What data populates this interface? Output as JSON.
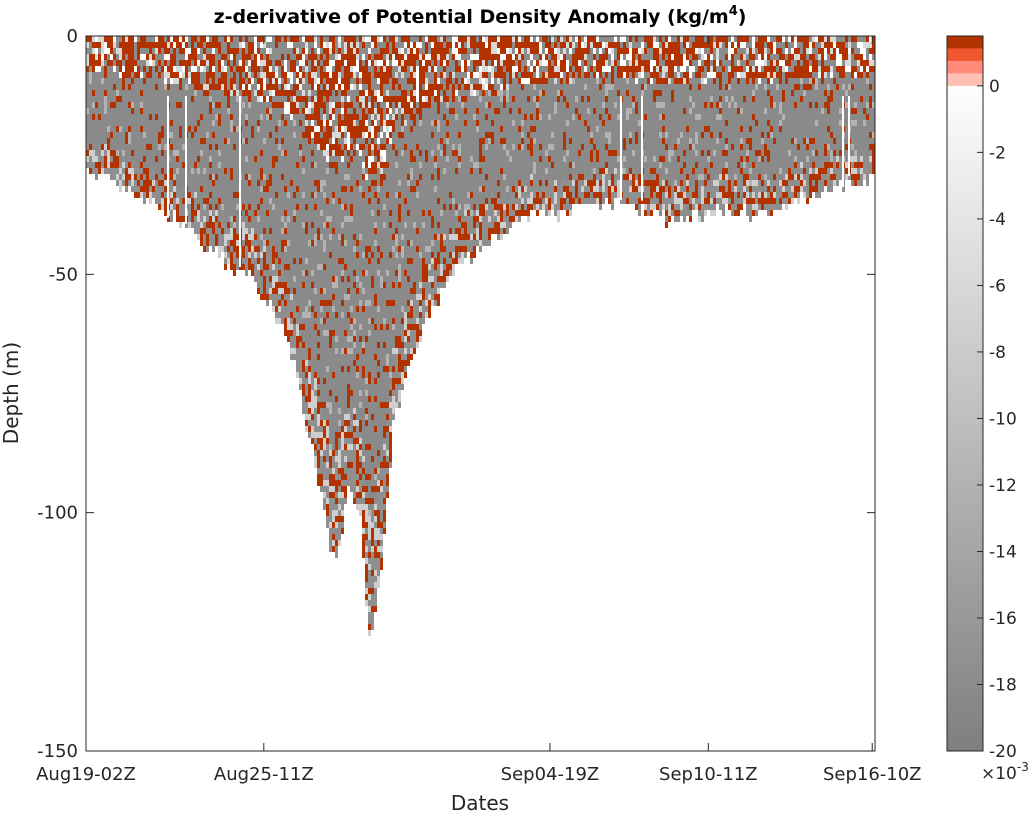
{
  "chart_data": {
    "type": "heatmap",
    "title": "z-derivative of Potential Density Anomaly (kg/m",
    "title_superscript": "4",
    "title_suffix": ")",
    "xlabel": "Dates",
    "ylabel": "Depth  (m)",
    "ylim": [
      -150,
      0
    ],
    "y_ticks": [
      {
        "value": 0,
        "label": "0"
      },
      {
        "value": -50,
        "label": "-50"
      },
      {
        "value": -100,
        "label": "-100"
      },
      {
        "value": -150,
        "label": "-150"
      }
    ],
    "x_range_days": [
      0,
      28.4
    ],
    "x_ticks": [
      {
        "label": "Aug19-02Z",
        "day": 0
      },
      {
        "label": "Aug25-11Z",
        "day": 6.4
      },
      {
        "label": "Sep04-19Z",
        "day": 16.7
      },
      {
        "label": "Sep10-11Z",
        "day": 22.4
      },
      {
        "label": "Sep16-10Z",
        "day": 28.3
      }
    ],
    "mixed_layer_base_depth": [
      {
        "day": 0,
        "depth": -27
      },
      {
        "day": 1,
        "depth": -30
      },
      {
        "day": 2,
        "depth": -33
      },
      {
        "day": 3,
        "depth": -37
      },
      {
        "day": 4,
        "depth": -42
      },
      {
        "day": 5,
        "depth": -47
      },
      {
        "day": 6,
        "depth": -51
      },
      {
        "day": 7,
        "depth": -60
      },
      {
        "day": 7.6,
        "depth": -72
      },
      {
        "day": 8,
        "depth": -84
      },
      {
        "day": 8.4,
        "depth": -95
      },
      {
        "day": 8.7,
        "depth": -105
      },
      {
        "day": 9,
        "depth": -110
      },
      {
        "day": 9.4,
        "depth": -95
      },
      {
        "day": 9.8,
        "depth": -100
      },
      {
        "day": 10.2,
        "depth": -128
      },
      {
        "day": 10.6,
        "depth": -110
      },
      {
        "day": 11,
        "depth": -82
      },
      {
        "day": 11.6,
        "depth": -68
      },
      {
        "day": 12.3,
        "depth": -58
      },
      {
        "day": 13,
        "depth": -50
      },
      {
        "day": 14,
        "depth": -45
      },
      {
        "day": 15,
        "depth": -40
      },
      {
        "day": 16,
        "depth": -36
      },
      {
        "day": 17,
        "depth": -37
      },
      {
        "day": 18,
        "depth": -35
      },
      {
        "day": 19,
        "depth": -35
      },
      {
        "day": 20,
        "depth": -36
      },
      {
        "day": 21,
        "depth": -38
      },
      {
        "day": 22,
        "depth": -37
      },
      {
        "day": 23,
        "depth": -35
      },
      {
        "day": 24,
        "depth": -37
      },
      {
        "day": 25,
        "depth": -36
      },
      {
        "day": 26,
        "depth": -33
      },
      {
        "day": 27,
        "depth": -31
      },
      {
        "day": 28.4,
        "depth": -29
      }
    ],
    "colorbar": {
      "range": [
        -20,
        1.5
      ],
      "ticks": [
        0,
        -2,
        -4,
        -6,
        -8,
        -10,
        -12,
        -14,
        -16,
        -18,
        -20
      ],
      "exponent_base": "×10",
      "exponent": "-3",
      "negative_colors": [
        "#ffffff",
        "#7f7f7f"
      ],
      "positive_colors": [
        "#ffbfb3",
        "#ff8a77",
        "#f0562e",
        "#b23300"
      ]
    },
    "colors": {
      "positive": "#b23300",
      "negative": "#8c8c8c",
      "axis": "#262626"
    }
  }
}
